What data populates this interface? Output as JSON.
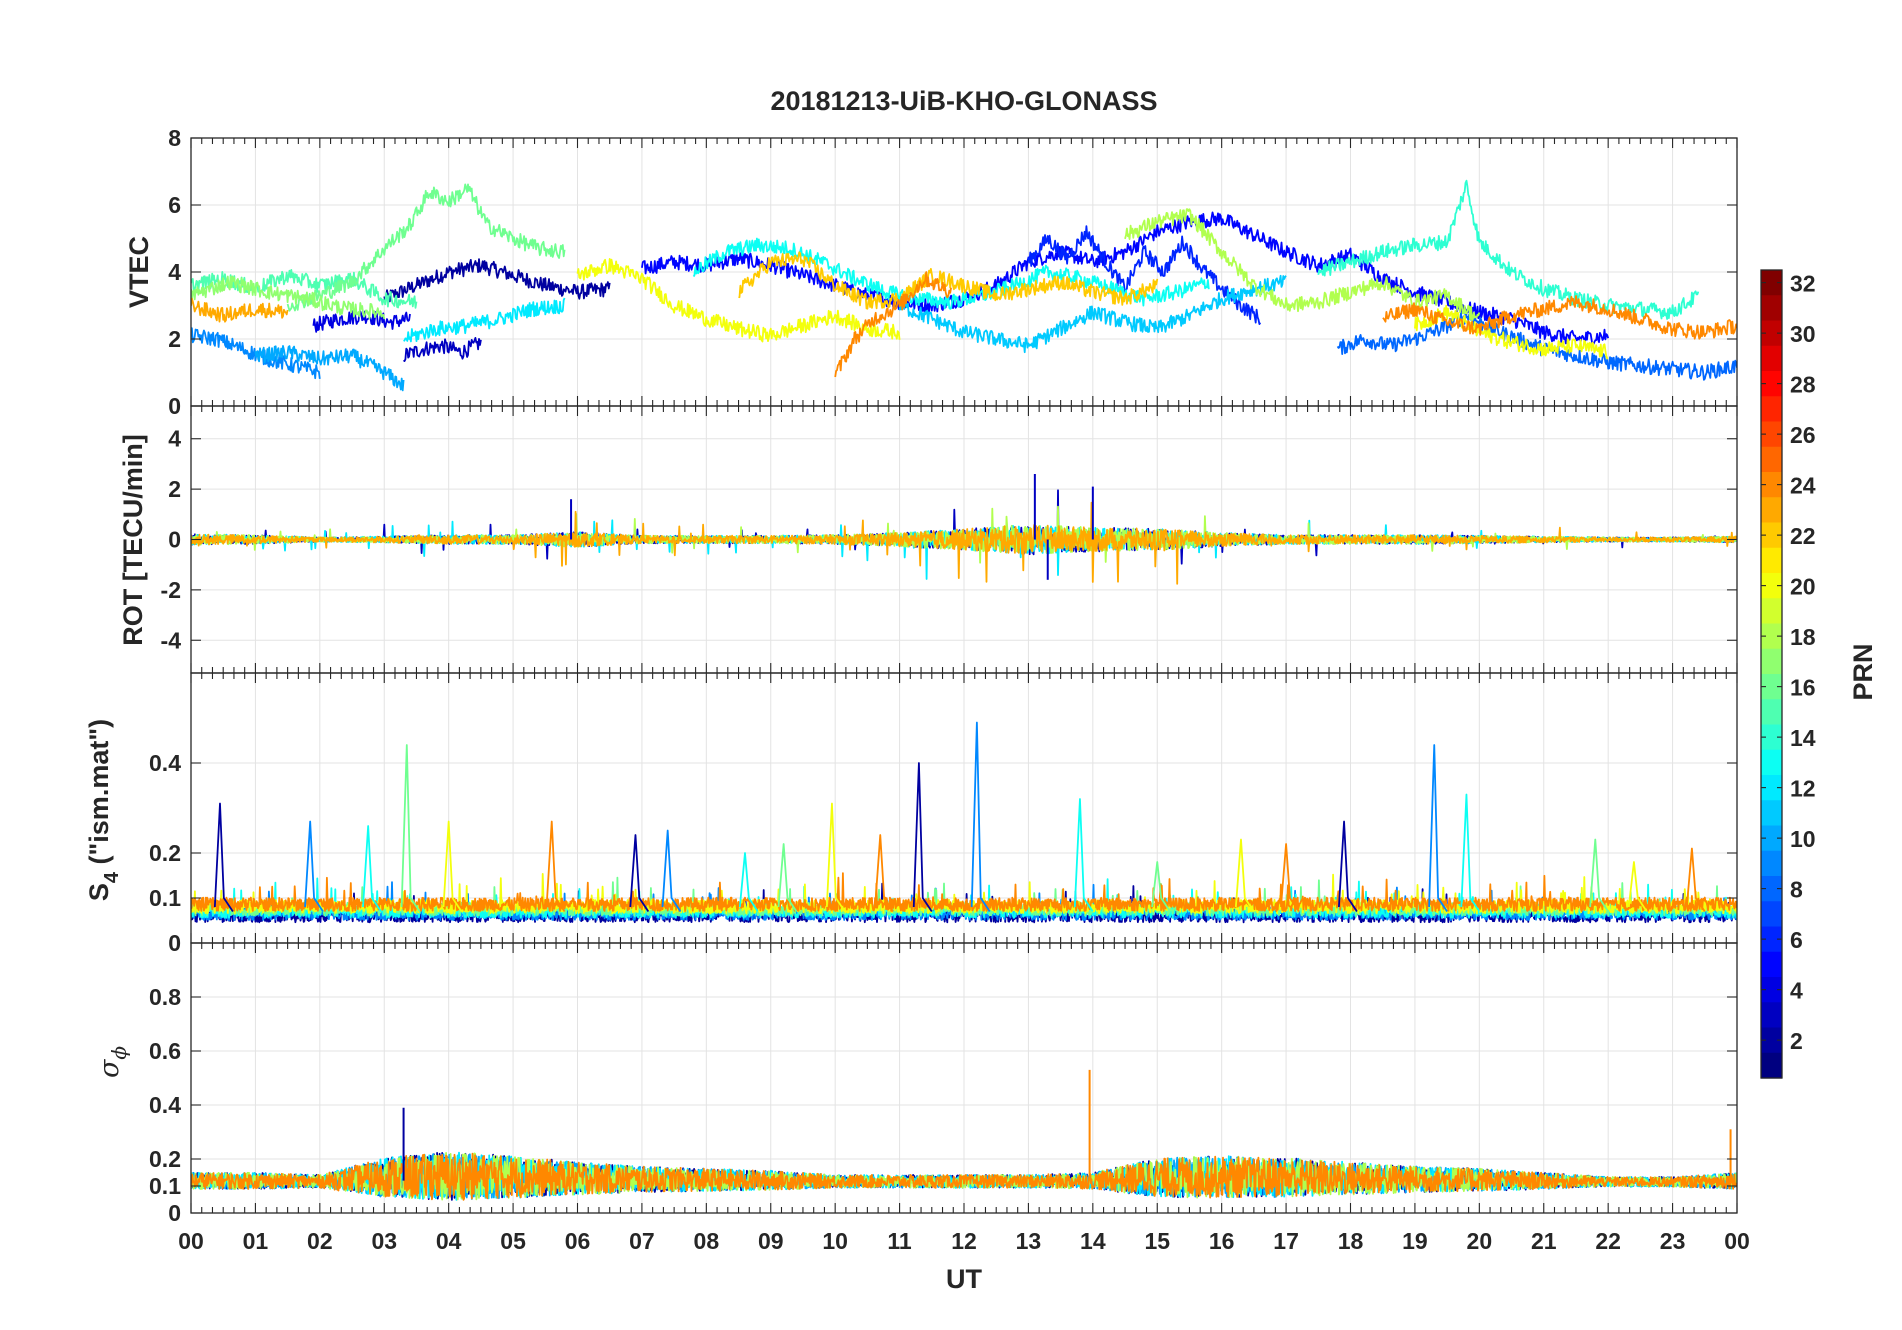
{
  "chart_data": [
    {
      "type": "line",
      "panel": "vtec",
      "title": "20181213-UiB-KHO-GLONASS",
      "ylabel": "VTEC",
      "ylim": [
        0,
        8
      ],
      "yticks": [
        0,
        2,
        4,
        6,
        8
      ],
      "ytick_labels": [
        "0",
        "2",
        "4",
        "6",
        "8"
      ],
      "xlim": [
        0,
        24
      ],
      "grid": true,
      "series": [
        {
          "name": "PRN 2",
          "prn": 2,
          "x": [
            3.0,
            3.5,
            4.0,
            4.5,
            5.0,
            5.5,
            6.0,
            6.5
          ],
          "y": [
            3.2,
            3.6,
            4.0,
            4.2,
            3.9,
            3.6,
            3.4,
            3.5
          ]
        },
        {
          "name": "PRN 3",
          "prn": 3,
          "x": [
            3.3,
            3.6,
            3.9,
            4.2,
            4.5
          ],
          "y": [
            1.5,
            1.7,
            1.8,
            1.6,
            1.9
          ]
        },
        {
          "name": "PRN 4",
          "prn": 4,
          "x": [
            1.9,
            2.3,
            2.7,
            3.1,
            3.4
          ],
          "y": [
            2.4,
            2.6,
            2.7,
            2.5,
            2.6
          ]
        },
        {
          "name": "PRN 5",
          "prn": 5,
          "x": [
            7.0,
            7.5,
            8.0,
            8.5,
            9.0,
            9.5,
            10.0,
            10.5,
            11.0,
            11.5,
            12.0,
            12.5,
            13.0,
            13.5,
            14.0,
            14.5,
            15.0,
            15.5,
            16.0,
            16.5,
            17.0,
            17.5,
            18.0,
            18.5,
            19.0,
            19.5,
            20.0,
            20.5,
            21.0,
            21.5,
            22.0
          ],
          "y": [
            4.1,
            4.3,
            4.2,
            4.4,
            4.2,
            3.9,
            3.6,
            3.3,
            3.1,
            3.0,
            3.2,
            3.6,
            4.3,
            4.6,
            4.3,
            4.6,
            5.2,
            5.5,
            5.6,
            5.1,
            4.6,
            4.2,
            4.5,
            3.8,
            3.4,
            3.1,
            2.8,
            2.6,
            2.2,
            2.0,
            2.1
          ]
        },
        {
          "name": "PRN 6",
          "prn": 6,
          "x": [
            13.0,
            13.3,
            13.6,
            13.9,
            14.2,
            14.5,
            14.8,
            15.1,
            15.4,
            15.7,
            16.0,
            16.3,
            16.6
          ],
          "y": [
            4.3,
            5.0,
            4.4,
            5.2,
            4.3,
            3.5,
            4.6,
            4.0,
            4.9,
            4.1,
            3.5,
            3.0,
            2.6
          ]
        },
        {
          "name": "PRN 8",
          "prn": 8,
          "x": [
            17.8,
            18.2,
            18.6,
            19.0,
            19.4,
            19.8,
            20.2,
            20.6,
            21.0,
            21.5,
            22.0,
            22.5,
            23.0,
            23.5,
            24.0
          ],
          "y": [
            1.7,
            2.0,
            1.8,
            2.0,
            2.3,
            2.7,
            2.3,
            2.0,
            1.7,
            1.5,
            1.3,
            1.2,
            1.1,
            1.0,
            1.2
          ]
        },
        {
          "name": "PRN 9",
          "prn": 9,
          "x": [
            0.0,
            0.4,
            0.8,
            1.2,
            1.6,
            2.0
          ],
          "y": [
            2.1,
            2.0,
            1.7,
            1.4,
            1.2,
            1.0
          ]
        },
        {
          "name": "PRN 10",
          "prn": 10,
          "x": [
            1.0,
            1.5,
            2.0,
            2.5,
            3.0,
            3.3
          ],
          "y": [
            1.5,
            1.6,
            1.4,
            1.5,
            1.0,
            0.6
          ]
        },
        {
          "name": "PRN 11",
          "prn": 11,
          "x": [
            11.0,
            11.5,
            12.0,
            12.5,
            13.0,
            13.5,
            14.0,
            14.5,
            15.0,
            15.5,
            16.0,
            16.5,
            17.0
          ],
          "y": [
            3.0,
            2.6,
            2.2,
            2.0,
            1.8,
            2.3,
            2.8,
            2.5,
            2.3,
            2.7,
            3.2,
            3.5,
            3.7
          ]
        },
        {
          "name": "PRN 12",
          "prn": 12,
          "x": [
            3.3,
            3.8,
            4.3,
            4.8,
            5.3,
            5.8
          ],
          "y": [
            2.0,
            2.3,
            2.4,
            2.6,
            2.9,
            3.0
          ]
        },
        {
          "name": "PRN 13",
          "prn": 13,
          "x": [
            7.8,
            8.3,
            8.8,
            9.3,
            9.8,
            10.3,
            10.8,
            11.3,
            11.8,
            12.3,
            12.8,
            13.3,
            13.8,
            14.3,
            14.8,
            15.3,
            15.8
          ],
          "y": [
            4.0,
            4.6,
            4.8,
            4.7,
            4.3,
            3.8,
            3.4,
            3.2,
            3.1,
            3.3,
            3.6,
            4.0,
            3.8,
            3.5,
            3.2,
            3.4,
            3.7
          ]
        },
        {
          "name": "PRN 14",
          "prn": 14,
          "x": [
            17.5,
            18.0,
            18.5,
            19.0,
            19.5,
            19.8,
            20.0,
            20.5,
            21.0,
            21.5,
            22.0,
            22.5,
            23.0,
            23.4
          ],
          "y": [
            4.0,
            4.3,
            4.6,
            4.8,
            4.9,
            6.6,
            4.9,
            4.0,
            3.5,
            3.2,
            3.0,
            2.9,
            2.8,
            3.3
          ]
        },
        {
          "name": "PRN 15",
          "prn": 15,
          "x": [
            0.0,
            0.5,
            1.0,
            1.5,
            2.0,
            2.5,
            3.0,
            3.5
          ],
          "y": [
            3.6,
            3.8,
            3.5,
            3.9,
            3.6,
            3.8,
            3.2,
            3.1
          ]
        },
        {
          "name": "PRN 16",
          "prn": 16,
          "x": [
            1.5,
            2.0,
            2.5,
            3.0,
            3.4,
            3.7,
            4.0,
            4.3,
            4.6,
            5.0,
            5.4,
            5.8
          ],
          "y": [
            3.0,
            3.3,
            3.7,
            4.7,
            5.4,
            6.4,
            6.1,
            6.5,
            5.4,
            5.0,
            4.7,
            4.6
          ]
        },
        {
          "name": "PRN 17",
          "prn": 17,
          "x": [
            0.0,
            0.6,
            1.2,
            1.8,
            2.4,
            3.0
          ],
          "y": [
            3.3,
            3.7,
            3.4,
            3.2,
            2.9,
            2.8
          ]
        },
        {
          "name": "PRN 18",
          "prn": 18,
          "x": [
            14.5,
            15.0,
            15.5,
            16.0,
            16.5,
            17.0,
            17.5,
            18.0,
            18.5,
            19.0,
            19.5,
            20.0
          ],
          "y": [
            5.1,
            5.5,
            5.7,
            4.6,
            3.6,
            3.0,
            3.1,
            3.4,
            3.7,
            3.1,
            3.3,
            2.6
          ]
        },
        {
          "name": "PRN 20",
          "prn": 20,
          "x": [
            6.0,
            6.5,
            7.0,
            7.5,
            8.0,
            8.5,
            9.0,
            9.5,
            10.0,
            10.5,
            11.0
          ],
          "y": [
            3.9,
            4.2,
            3.8,
            3.0,
            2.6,
            2.3,
            2.1,
            2.4,
            2.7,
            2.3,
            2.2
          ]
        },
        {
          "name": "PRN 20b",
          "prn": 20,
          "x": [
            19.0,
            19.5,
            20.0,
            20.5,
            21.0,
            21.5,
            22.0
          ],
          "y": [
            2.4,
            2.8,
            2.2,
            1.9,
            1.7,
            1.8,
            1.6
          ]
        },
        {
          "name": "PRN 22",
          "prn": 22,
          "x": [
            8.5,
            9.0,
            9.5,
            10.0,
            10.5,
            11.0,
            11.5,
            12.0,
            12.5,
            13.0,
            13.5,
            14.0,
            14.5,
            15.0
          ],
          "y": [
            3.4,
            4.3,
            4.4,
            3.6,
            3.1,
            3.2,
            3.9,
            3.6,
            3.3,
            3.5,
            3.7,
            3.4,
            3.2,
            3.6
          ]
        },
        {
          "name": "PRN 23",
          "prn": 23,
          "x": [
            0.0,
            0.5,
            1.0,
            1.5
          ],
          "y": [
            3.0,
            2.7,
            2.9,
            2.8
          ]
        },
        {
          "name": "PRN 24",
          "prn": 24,
          "x": [
            18.5,
            19.0,
            19.5,
            20.0,
            20.5,
            21.0,
            21.5,
            22.0,
            22.5,
            23.0,
            23.5,
            24.0
          ],
          "y": [
            2.6,
            2.9,
            2.5,
            2.3,
            2.7,
            2.9,
            3.1,
            2.9,
            2.6,
            2.3,
            2.2,
            2.4
          ]
        },
        {
          "name": "PRN 24b",
          "prn": 24,
          "x": [
            10.0,
            10.3,
            10.6,
            11.0,
            11.4,
            11.8
          ],
          "y": [
            0.9,
            2.0,
            2.6,
            3.0,
            3.8,
            3.4
          ]
        }
      ]
    },
    {
      "type": "line",
      "panel": "rot",
      "ylabel": "ROT [TECU/min]",
      "ylim": [
        -5.3,
        5.3
      ],
      "yticks": [
        -4,
        -2,
        0,
        2,
        4
      ],
      "ytick_labels": [
        "-4",
        "-2",
        "0",
        "2",
        "4"
      ],
      "xlim": [
        0,
        24
      ],
      "grid": true,
      "baseline": 0,
      "activity_profile": {
        "x": [
          0,
          1,
          2,
          3,
          4,
          5,
          6,
          7,
          8,
          9,
          10,
          11,
          12,
          13,
          14,
          15,
          16,
          17,
          18,
          19,
          20,
          21,
          22,
          23,
          24
        ],
        "amplitude": [
          0.35,
          0.3,
          0.15,
          0.2,
          0.3,
          0.3,
          0.5,
          0.25,
          0.25,
          0.25,
          0.3,
          0.45,
          0.7,
          1.0,
          0.8,
          0.7,
          0.45,
          0.3,
          0.3,
          0.3,
          0.25,
          0.2,
          0.15,
          0.15,
          0.2
        ]
      },
      "annotations": [
        {
          "x": 13.1,
          "y": 2.6
        },
        {
          "x": 13.3,
          "y": -1.6
        },
        {
          "x": 14.0,
          "y": 2.1
        },
        {
          "x": 5.9,
          "y": 1.6
        }
      ],
      "series_prns": [
        3,
        12,
        18,
        23
      ]
    },
    {
      "type": "line",
      "panel": "s4",
      "ylabel": "S4 (\"ism.mat\")",
      "ylabel_parts": {
        "main": "S",
        "sub": "4",
        "rest": " (\"ism.mat\")"
      },
      "ylim": [
        0,
        0.6
      ],
      "yticks": [
        0,
        0.1,
        0.2,
        0.4
      ],
      "ytick_labels": [
        "0",
        "0.1",
        "0.2",
        "0.4"
      ],
      "xlim": [
        0,
        24
      ],
      "grid": true,
      "baseline": 0.055,
      "spikes": [
        {
          "x": 0.45,
          "y": 0.31
        },
        {
          "x": 1.85,
          "y": 0.27
        },
        {
          "x": 2.75,
          "y": 0.26
        },
        {
          "x": 3.35,
          "y": 0.44
        },
        {
          "x": 4.0,
          "y": 0.27
        },
        {
          "x": 5.6,
          "y": 0.27
        },
        {
          "x": 6.9,
          "y": 0.24
        },
        {
          "x": 7.4,
          "y": 0.25
        },
        {
          "x": 8.6,
          "y": 0.2
        },
        {
          "x": 9.2,
          "y": 0.22
        },
        {
          "x": 9.95,
          "y": 0.31
        },
        {
          "x": 10.7,
          "y": 0.24
        },
        {
          "x": 11.3,
          "y": 0.4
        },
        {
          "x": 12.2,
          "y": 0.49
        },
        {
          "x": 13.8,
          "y": 0.32
        },
        {
          "x": 15.0,
          "y": 0.18
        },
        {
          "x": 16.3,
          "y": 0.23
        },
        {
          "x": 17.0,
          "y": 0.22
        },
        {
          "x": 17.9,
          "y": 0.27
        },
        {
          "x": 19.3,
          "y": 0.44
        },
        {
          "x": 19.8,
          "y": 0.33
        },
        {
          "x": 21.8,
          "y": 0.23
        },
        {
          "x": 22.4,
          "y": 0.18
        },
        {
          "x": 23.3,
          "y": 0.21
        }
      ],
      "series_prns": [
        2,
        9,
        13,
        16,
        20,
        24
      ]
    },
    {
      "type": "line",
      "panel": "sigma_phi",
      "ylabel": "σ ϕ",
      "ylabel_parts": {
        "main": "σ",
        "sub": "ϕ"
      },
      "ylim": [
        0,
        1.0
      ],
      "yticks": [
        0,
        0.1,
        0.2,
        0.4,
        0.6,
        0.8
      ],
      "ytick_labels": [
        "0",
        "0.1",
        "0.2",
        "0.4",
        "0.6",
        "0.8"
      ],
      "xlim": [
        0,
        24
      ],
      "grid": true,
      "baseline": 0.11,
      "activity_profile": {
        "x": [
          0,
          1,
          2,
          3,
          4,
          5,
          6,
          7,
          8,
          9,
          10,
          11,
          12,
          13,
          14,
          15,
          16,
          17,
          18,
          19,
          20,
          21,
          22,
          23,
          24
        ],
        "amplitude": [
          0.05,
          0.05,
          0.04,
          0.12,
          0.15,
          0.13,
          0.1,
          0.08,
          0.07,
          0.06,
          0.04,
          0.04,
          0.04,
          0.04,
          0.05,
          0.12,
          0.13,
          0.12,
          0.1,
          0.08,
          0.07,
          0.05,
          0.03,
          0.03,
          0.05
        ]
      },
      "spikes": [
        {
          "x": 13.95,
          "y": 0.53
        },
        {
          "x": 3.3,
          "y": 0.39
        },
        {
          "x": 23.9,
          "y": 0.31
        }
      ],
      "series_prns": [
        2,
        10,
        12,
        18,
        24
      ]
    }
  ],
  "x_axis": {
    "label": "UT",
    "ticks": [
      0,
      1,
      2,
      3,
      4,
      5,
      6,
      7,
      8,
      9,
      10,
      11,
      12,
      13,
      14,
      15,
      16,
      17,
      18,
      19,
      20,
      21,
      22,
      23,
      24
    ],
    "tick_labels": [
      "00",
      "01",
      "02",
      "03",
      "04",
      "05",
      "06",
      "07",
      "08",
      "09",
      "10",
      "11",
      "12",
      "13",
      "14",
      "15",
      "16",
      "17",
      "18",
      "19",
      "20",
      "21",
      "22",
      "23",
      "00"
    ]
  },
  "colorbar": {
    "label": "PRN",
    "range": [
      1,
      32
    ],
    "colormap": "jet",
    "ticks": [
      2,
      4,
      6,
      8,
      10,
      12,
      14,
      16,
      18,
      20,
      22,
      24,
      26,
      28,
      30,
      32
    ],
    "tick_labels": [
      "2",
      "4",
      "6",
      "8",
      "10",
      "12",
      "14",
      "16",
      "18",
      "20",
      "22",
      "24",
      "26",
      "28",
      "30",
      "32"
    ]
  },
  "colors": {
    "axis": "#262626",
    "grid": "#e3e3e3",
    "background": "#ffffff"
  }
}
